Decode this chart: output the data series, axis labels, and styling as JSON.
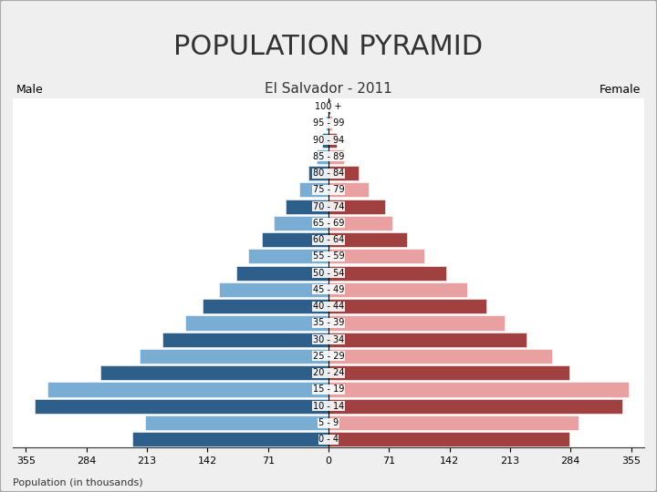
{
  "title": "POPULATION PYRAMID",
  "subtitle": "El Salvador - 2011",
  "xlabel": "Population (in thousands)",
  "male_label": "Male",
  "female_label": "Female",
  "age_groups": [
    "0 - 4",
    "5 - 9",
    "10 - 14",
    "15 - 19",
    "20 - 24",
    "25 - 29",
    "30 - 34",
    "35 - 39",
    "40 - 44",
    "45 - 49",
    "50 - 54",
    "55 - 59",
    "60 - 64",
    "65 - 69",
    "70 - 74",
    "75 - 79",
    "80 - 84",
    "85 - 89",
    "90 - 94",
    "95 - 99",
    "100 +"
  ],
  "male_values": [
    230,
    215,
    345,
    330,
    268,
    222,
    195,
    168,
    148,
    128,
    108,
    94,
    78,
    64,
    50,
    34,
    24,
    14,
    7,
    3,
    1
  ],
  "female_values": [
    283,
    293,
    345,
    352,
    283,
    262,
    232,
    207,
    185,
    163,
    138,
    112,
    92,
    75,
    66,
    47,
    35,
    18,
    10,
    4,
    2
  ],
  "male_color_dark": "#2e5f8a",
  "male_color_light": "#7aadd4",
  "female_color_dark": "#a04040",
  "female_color_light": "#e8a0a0",
  "bg_color": "#efefef",
  "plot_bg": "#ffffff",
  "xlim": 370,
  "xtick_step": 71,
  "title_fontsize": 22,
  "subtitle_fontsize": 11,
  "label_fontsize": 9,
  "tick_fontsize": 8,
  "age_fontsize": 7
}
